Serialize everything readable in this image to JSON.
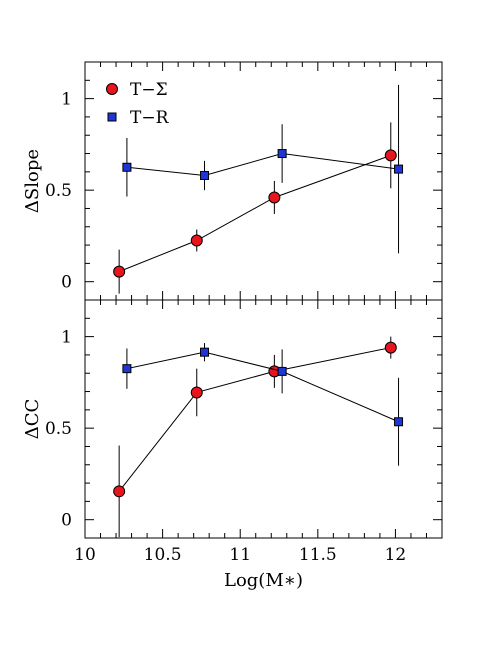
{
  "chart_data": [
    {
      "type": "scatter",
      "ylabel": "ΔSlope",
      "xlabel": "",
      "xlim": [
        10,
        12.3
      ],
      "ylim": [
        -0.1,
        1.2
      ],
      "x_ticks": [
        "10",
        "10.5",
        "11",
        "11.5",
        "12"
      ],
      "y_ticks": [
        "0",
        "0.5",
        "1"
      ],
      "x_tick_labels_visible": false,
      "legend": {
        "placement": "top-left",
        "entries": [
          "T−Σ",
          "T−R"
        ]
      },
      "grid": false,
      "series": [
        {
          "name": "T−Σ",
          "marker": "circle",
          "color": "#e8141e",
          "edge": "#000000",
          "x": [
            10.22,
            10.72,
            11.22,
            11.97
          ],
          "y": [
            0.055,
            0.225,
            0.46,
            0.69
          ],
          "err_low": [
            0.12,
            0.06,
            0.09,
            0.18
          ],
          "err_high": [
            0.12,
            0.06,
            0.09,
            0.18
          ]
        },
        {
          "name": "T−R",
          "marker": "square",
          "color": "#1f35d6",
          "edge": "#000000",
          "x": [
            10.27,
            10.77,
            11.27,
            12.02
          ],
          "y": [
            0.625,
            0.58,
            0.7,
            0.615
          ],
          "err_low": [
            0.16,
            0.08,
            0.16,
            0.46
          ],
          "err_high": [
            0.16,
            0.08,
            0.16,
            0.46
          ]
        }
      ]
    },
    {
      "type": "scatter",
      "ylabel": "ΔCC",
      "xlabel": "Log(M∗)",
      "xlim": [
        10,
        12.3
      ],
      "ylim": [
        -0.1,
        1.2
      ],
      "x_ticks": [
        "10",
        "10.5",
        "11",
        "11.5",
        "12"
      ],
      "y_ticks": [
        "0",
        "0.5",
        "1"
      ],
      "x_tick_labels_visible": true,
      "grid": false,
      "series": [
        {
          "name": "T−Σ",
          "marker": "circle",
          "color": "#e8141e",
          "edge": "#000000",
          "x": [
            10.22,
            10.72,
            11.22,
            11.97
          ],
          "y": [
            0.155,
            0.695,
            0.81,
            0.94
          ],
          "err_low": [
            0.25,
            0.13,
            0.09,
            0.06
          ],
          "err_high": [
            0.25,
            0.13,
            0.09,
            0.06
          ]
        },
        {
          "name": "T−R",
          "marker": "square",
          "color": "#1f35d6",
          "edge": "#000000",
          "x": [
            10.27,
            10.77,
            11.27,
            12.02
          ],
          "y": [
            0.825,
            0.915,
            0.81,
            0.535
          ],
          "err_low": [
            0.11,
            0.05,
            0.12,
            0.24
          ],
          "err_high": [
            0.11,
            0.05,
            0.12,
            0.24
          ]
        }
      ]
    }
  ]
}
